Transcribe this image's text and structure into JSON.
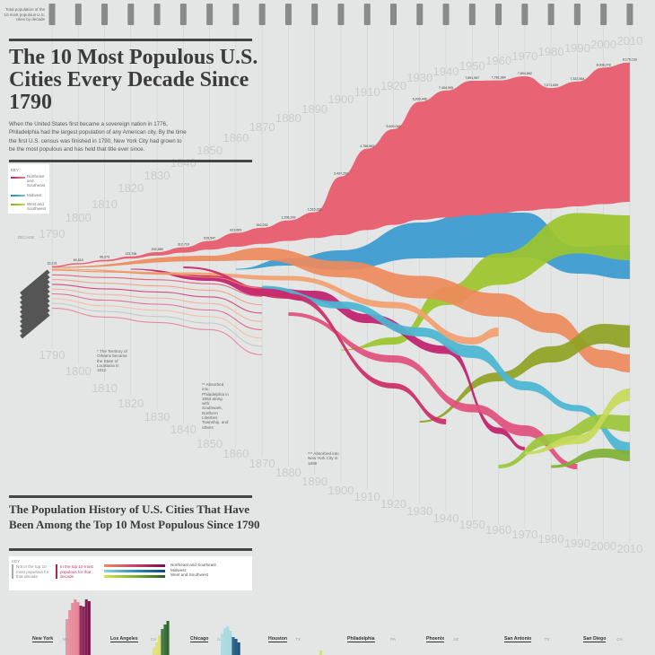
{
  "header": {
    "total_label": "Total population of the 10 most populous U.S. cities by decade",
    "title": "The 10 Most Populous U.S. Cities Every Decade Since 1790",
    "intro": "When the United States first became a sovereign nation in 1776, Philadelphia had the largest population of any American city. By the time the first U.S. census was finished in 1790, New York City had grown to be the most populous and has held that title ever since."
  },
  "key": {
    "title": "KEY",
    "items": [
      {
        "label": "Northeast and Southeast",
        "color": "#e0407a"
      },
      {
        "label": "Midwest",
        "color": "#3a9fd0"
      },
      {
        "label": "West and Southwest",
        "color": "#9cc42a"
      }
    ]
  },
  "decade_label": "DECADE",
  "notes": {
    "orleans": "* The Territory of Orleans became the State of Louisiana in 1812",
    "philadelphia": "** Absorbed into Philadelphia in 1854 along with Southwark, Northern Liberties Township, and others",
    "brooklyn": "*** Absorbed into New York City in 1898"
  },
  "section2": {
    "title": "The Population History of U.S. Cities That Have Been Among the Top 10 Most Populous Since 1790",
    "key_title": "KEY",
    "not_top": "Not in the top 10 most populous for that decade",
    "in_top": "In the top 10 most populous for that decade",
    "regions": [
      "Northeast and Southeast",
      "Midwest",
      "West and Southwest"
    ],
    "cities": [
      {
        "name": "New York",
        "state": "NY"
      },
      {
        "name": "Los Angeles",
        "state": "CA"
      },
      {
        "name": "Chicago",
        "state": "IL"
      },
      {
        "name": "Houston",
        "state": "TX"
      },
      {
        "name": "Philadelphia",
        "state": "PA"
      },
      {
        "name": "Phoenix",
        "state": "AZ"
      },
      {
        "name": "San Antonio",
        "state": "TX"
      },
      {
        "name": "San Diego",
        "state": "CA"
      }
    ]
  },
  "colors": {
    "background": "#e4e6e5",
    "new_york": "#e86474",
    "midwest": "#3a9fd0",
    "west": "#9cc42a",
    "orange": "#ee8a5c"
  },
  "chart_data": {
    "type": "area",
    "x": [
      1790,
      1800,
      1810,
      1820,
      1830,
      1840,
      1850,
      1860,
      1870,
      1880,
      1890,
      1900,
      1910,
      1920,
      1930,
      1940,
      1950,
      1960,
      1970,
      1980,
      1990,
      2000,
      2010
    ],
    "x_labels": [
      "1790",
      "1800",
      "1810",
      "1820",
      "1830",
      "1840",
      "1850",
      "1860",
      "1870",
      "1880",
      "1890",
      "1900",
      "1910",
      "1920",
      "1930",
      "1940",
      "1950",
      "1960",
      "1970",
      "1980",
      "1990",
      "2000",
      "2010"
    ],
    "series": [
      {
        "name": "New York",
        "values": [
          33131,
          60515,
          96373,
          123706,
          202589,
          312710,
          515547,
          813669,
          942292,
          1206299,
          1515301,
          3437202,
          4766883,
          5620048,
          6930446,
          7454995,
          7891957,
          7781984,
          7894862,
          7071639,
          7322564,
          8008278,
          8175133
        ],
        "labels": [
          "33,131",
          "60,515",
          "96,373",
          "123,706",
          "202,589",
          "312,710",
          "515,547",
          "813,669",
          "942,292",
          "1,206,299",
          "1,515,301",
          "3,437,202",
          "4,766,883",
          "5,620,048",
          "6,930,446",
          "7,454,995",
          "7,891,957",
          "7,781,984",
          "7,894,862",
          "7,071,639",
          "7,322,564",
          "8,008,278",
          "8,175,133"
        ]
      }
    ]
  }
}
